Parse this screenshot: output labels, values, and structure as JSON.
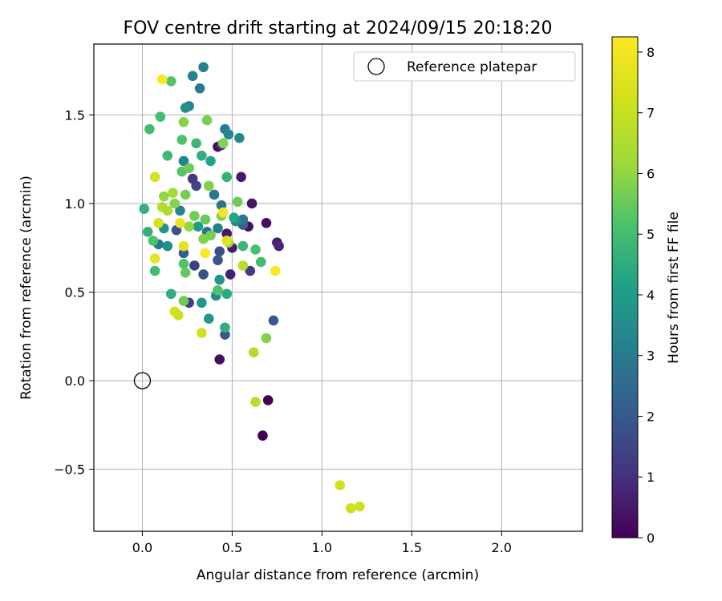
{
  "chart_data": {
    "type": "scatter",
    "title": "FOV centre drift starting at 2024/09/15 20:18:20",
    "xlabel": "Angular distance from reference (arcmin)",
    "ylabel": "Rotation from reference (arcmin)",
    "xlim": [
      -0.27,
      2.45
    ],
    "ylim": [
      -0.85,
      1.9
    ],
    "xticks": [
      0.0,
      0.5,
      1.0,
      1.5,
      2.0
    ],
    "xtick_labels": [
      "0.0",
      "0.5",
      "1.0",
      "1.5",
      "2.0"
    ],
    "yticks": [
      -0.5,
      0.0,
      0.5,
      1.0,
      1.5
    ],
    "ytick_labels": [
      "−0.5",
      "0.0",
      "0.5",
      "1.0",
      "1.5"
    ],
    "grid": true,
    "legend": {
      "position": "top-right",
      "entries": [
        "Reference platepar"
      ]
    },
    "reference_point": {
      "x": 0.0,
      "y": 0.0,
      "name": "Reference platepar"
    },
    "colorbar": {
      "label": "Hours from first FF file",
      "range": [
        0,
        8.25
      ],
      "ticks": [
        0,
        1,
        2,
        3,
        4,
        5,
        6,
        7,
        8
      ],
      "tick_labels": [
        "0",
        "1",
        "2",
        "3",
        "4",
        "5",
        "6",
        "7",
        "8"
      ],
      "colormap": "viridis"
    },
    "points": [
      {
        "x": 0.7,
        "y": -0.11,
        "h": 0.0
      },
      {
        "x": 0.67,
        "y": -0.31,
        "h": 0.0
      },
      {
        "x": 0.43,
        "y": 0.12,
        "h": 0.3
      },
      {
        "x": 0.69,
        "y": 0.89,
        "h": 0.3
      },
      {
        "x": 0.61,
        "y": 1.0,
        "h": 0.4
      },
      {
        "x": 0.55,
        "y": 1.15,
        "h": 0.5
      },
      {
        "x": 0.59,
        "y": 0.87,
        "h": 0.3
      },
      {
        "x": 0.5,
        "y": 0.75,
        "h": 0.6
      },
      {
        "x": 0.47,
        "y": 0.83,
        "h": 0.5
      },
      {
        "x": 0.49,
        "y": 0.6,
        "h": 0.7
      },
      {
        "x": 0.75,
        "y": 0.78,
        "h": 0.6
      },
      {
        "x": 0.76,
        "y": 0.76,
        "h": 0.8
      },
      {
        "x": 0.6,
        "y": 0.62,
        "h": 1.3
      },
      {
        "x": 0.73,
        "y": 0.34,
        "h": 2.0
      },
      {
        "x": 0.46,
        "y": 0.26,
        "h": 2.0
      },
      {
        "x": 0.42,
        "y": 1.32,
        "h": 0.2
      },
      {
        "x": 0.44,
        "y": 1.33,
        "h": 0.9
      },
      {
        "x": 0.29,
        "y": 0.65,
        "h": 1.4
      },
      {
        "x": 0.26,
        "y": 0.44,
        "h": 1.3
      },
      {
        "x": 0.34,
        "y": 0.6,
        "h": 1.8
      },
      {
        "x": 0.3,
        "y": 1.1,
        "h": 1.5
      },
      {
        "x": 0.28,
        "y": 1.14,
        "h": 1.2
      },
      {
        "x": 0.19,
        "y": 0.85,
        "h": 1.8
      },
      {
        "x": 0.42,
        "y": 0.68,
        "h": 1.9
      },
      {
        "x": 0.43,
        "y": 0.73,
        "h": 1.7
      },
      {
        "x": 0.56,
        "y": 0.88,
        "h": 2.3
      },
      {
        "x": 0.23,
        "y": 0.72,
        "h": 2.2
      },
      {
        "x": 0.46,
        "y": 1.42,
        "h": 3.0
      },
      {
        "x": 0.48,
        "y": 1.39,
        "h": 3.3
      },
      {
        "x": 0.54,
        "y": 1.37,
        "h": 3.4
      },
      {
        "x": 0.23,
        "y": 1.24,
        "h": 3.2
      },
      {
        "x": 0.36,
        "y": 0.84,
        "h": 2.7
      },
      {
        "x": 0.4,
        "y": 1.05,
        "h": 2.9
      },
      {
        "x": 0.32,
        "y": 1.65,
        "h": 3.0
      },
      {
        "x": 0.34,
        "y": 1.77,
        "h": 3.2
      },
      {
        "x": 0.28,
        "y": 1.72,
        "h": 3.2
      },
      {
        "x": 0.26,
        "y": 1.55,
        "h": 3.3
      },
      {
        "x": 0.24,
        "y": 1.54,
        "h": 3.6
      },
      {
        "x": 0.33,
        "y": 1.27,
        "h": 4.5
      },
      {
        "x": 0.38,
        "y": 1.24,
        "h": 4.2
      },
      {
        "x": 0.3,
        "y": 1.34,
        "h": 4.8
      },
      {
        "x": 0.42,
        "y": 0.86,
        "h": 3.1
      },
      {
        "x": 0.44,
        "y": 0.99,
        "h": 2.8
      },
      {
        "x": 0.56,
        "y": 0.91,
        "h": 2.8
      },
      {
        "x": 0.52,
        "y": 0.9,
        "h": 3.5
      },
      {
        "x": 0.47,
        "y": 1.15,
        "h": 4.6
      },
      {
        "x": 0.21,
        "y": 0.96,
        "h": 3.3
      },
      {
        "x": 0.14,
        "y": 0.76,
        "h": 3.6
      },
      {
        "x": 0.09,
        "y": 0.77,
        "h": 2.9
      },
      {
        "x": 0.12,
        "y": 0.86,
        "h": 3.7
      },
      {
        "x": 0.01,
        "y": 0.97,
        "h": 4.6
      },
      {
        "x": 0.03,
        "y": 0.84,
        "h": 4.6
      },
      {
        "x": 0.06,
        "y": 0.79,
        "h": 5.2
      },
      {
        "x": 0.07,
        "y": 0.62,
        "h": 5.0
      },
      {
        "x": 0.04,
        "y": 1.42,
        "h": 5.0
      },
      {
        "x": 0.1,
        "y": 1.49,
        "h": 5.0
      },
      {
        "x": 0.16,
        "y": 1.69,
        "h": 5.3
      },
      {
        "x": 0.14,
        "y": 1.27,
        "h": 4.9
      },
      {
        "x": 0.22,
        "y": 1.36,
        "h": 5.2
      },
      {
        "x": 0.22,
        "y": 1.18,
        "h": 5.3
      },
      {
        "x": 0.23,
        "y": 1.46,
        "h": 5.9
      },
      {
        "x": 0.36,
        "y": 1.47,
        "h": 5.7
      },
      {
        "x": 0.45,
        "y": 1.34,
        "h": 5.8
      },
      {
        "x": 0.26,
        "y": 1.2,
        "h": 5.6
      },
      {
        "x": 0.17,
        "y": 1.06,
        "h": 6.3
      },
      {
        "x": 0.12,
        "y": 1.04,
        "h": 6.0
      },
      {
        "x": 0.11,
        "y": 0.98,
        "h": 6.6
      },
      {
        "x": 0.14,
        "y": 0.96,
        "h": 6.5
      },
      {
        "x": 0.18,
        "y": 1.0,
        "h": 5.9
      },
      {
        "x": 0.24,
        "y": 1.05,
        "h": 5.7
      },
      {
        "x": 0.37,
        "y": 1.1,
        "h": 5.8
      },
      {
        "x": 0.29,
        "y": 0.93,
        "h": 5.6
      },
      {
        "x": 0.35,
        "y": 0.91,
        "h": 5.5
      },
      {
        "x": 0.31,
        "y": 0.87,
        "h": 4.0
      },
      {
        "x": 0.26,
        "y": 0.87,
        "h": 6.0
      },
      {
        "x": 0.38,
        "y": 0.82,
        "h": 5.7
      },
      {
        "x": 0.44,
        "y": 0.93,
        "h": 5.8
      },
      {
        "x": 0.48,
        "y": 0.78,
        "h": 6.1
      },
      {
        "x": 0.51,
        "y": 0.92,
        "h": 4.2
      },
      {
        "x": 0.53,
        "y": 1.01,
        "h": 5.6
      },
      {
        "x": 0.56,
        "y": 0.76,
        "h": 4.8
      },
      {
        "x": 0.63,
        "y": 0.74,
        "h": 5.1
      },
      {
        "x": 0.66,
        "y": 0.67,
        "h": 5.0
      },
      {
        "x": 0.56,
        "y": 0.65,
        "h": 6.7
      },
      {
        "x": 0.34,
        "y": 0.8,
        "h": 5.8
      },
      {
        "x": 0.23,
        "y": 0.66,
        "h": 5.2
      },
      {
        "x": 0.24,
        "y": 0.61,
        "h": 5.5
      },
      {
        "x": 0.16,
        "y": 0.49,
        "h": 4.5
      },
      {
        "x": 0.23,
        "y": 0.45,
        "h": 5.6
      },
      {
        "x": 0.2,
        "y": 0.37,
        "h": 7.0
      },
      {
        "x": 0.18,
        "y": 0.39,
        "h": 7.3
      },
      {
        "x": 0.33,
        "y": 0.27,
        "h": 7.2
      },
      {
        "x": 0.37,
        "y": 0.35,
        "h": 3.9
      },
      {
        "x": 0.33,
        "y": 0.44,
        "h": 3.8
      },
      {
        "x": 0.41,
        "y": 0.48,
        "h": 3.4
      },
      {
        "x": 0.43,
        "y": 0.57,
        "h": 3.8
      },
      {
        "x": 0.42,
        "y": 0.51,
        "h": 5.2
      },
      {
        "x": 0.47,
        "y": 0.49,
        "h": 4.4
      },
      {
        "x": 0.46,
        "y": 0.3,
        "h": 4.5
      },
      {
        "x": 0.62,
        "y": 0.16,
        "h": 6.6
      },
      {
        "x": 0.69,
        "y": 0.24,
        "h": 5.8
      },
      {
        "x": 0.63,
        "y": -0.12,
        "h": 6.8
      },
      {
        "x": 0.74,
        "y": 0.62,
        "h": 8.2
      },
      {
        "x": 0.35,
        "y": 0.72,
        "h": 8.2
      },
      {
        "x": 0.11,
        "y": 1.7,
        "h": 8.2
      },
      {
        "x": 0.07,
        "y": 1.15,
        "h": 7.3
      },
      {
        "x": 0.09,
        "y": 0.89,
        "h": 7.4
      },
      {
        "x": 0.07,
        "y": 0.69,
        "h": 7.7
      },
      {
        "x": 0.23,
        "y": 0.76,
        "h": 7.6
      },
      {
        "x": 0.21,
        "y": 0.89,
        "h": 7.8
      },
      {
        "x": 0.45,
        "y": 0.95,
        "h": 8.0
      },
      {
        "x": 0.47,
        "y": 0.79,
        "h": 7.6
      },
      {
        "x": 1.1,
        "y": -0.59,
        "h": 7.3
      },
      {
        "x": 1.16,
        "y": -0.72,
        "h": 7.2
      },
      {
        "x": 1.21,
        "y": -0.71,
        "h": 7.2
      }
    ]
  }
}
